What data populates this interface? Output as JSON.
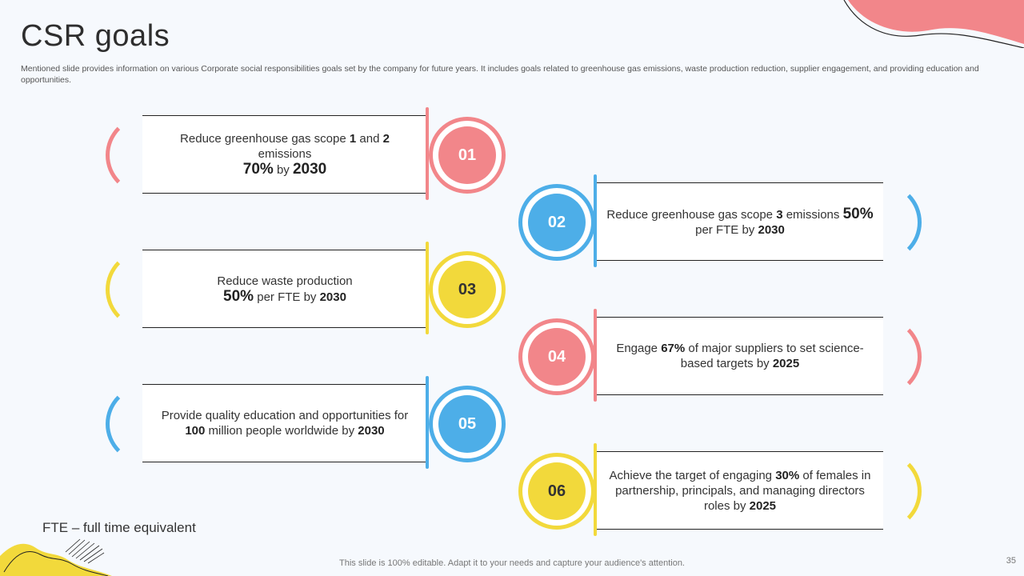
{
  "slide": {
    "title": "CSR goals",
    "subtitle": "Mentioned slide provides information on various Corporate social responsibilities goals set by the company for future years. It includes goals related to greenhouse gas emissions, waste production reduction, supplier engagement, and providing education and opportunities.",
    "footnote": "FTE – full time equivalent",
    "footer": "This slide is 100% editable. Adapt it to your needs and capture your audience's attention.",
    "page_number": "35"
  },
  "colors": {
    "pink": "#f2868a",
    "blue": "#4daee8",
    "yellow": "#f2d93b"
  },
  "goals": [
    {
      "number": "01",
      "color": "pink",
      "line1": [
        "Reduce greenhouse  gas scope ",
        "1",
        " and ",
        "2",
        " emissions"
      ],
      "line2": [
        "70%",
        " by ",
        "2030"
      ]
    },
    {
      "number": "02",
      "color": "blue",
      "line1": [
        "Reduce greenhouse  gas scope ",
        "3",
        " emissions ",
        "50%"
      ],
      "line2": [
        "per FTE by ",
        "2030"
      ]
    },
    {
      "number": "03",
      "color": "yellow",
      "line1": [
        "Reduce waste production"
      ],
      "line2": [
        "50%",
        " per FTE by ",
        "2030"
      ]
    },
    {
      "number": "04",
      "color": "pink",
      "line1": [
        "Engage ",
        "67%",
        " of major suppliers to set science-"
      ],
      "line2": [
        "based targets by ",
        "2025"
      ]
    },
    {
      "number": "05",
      "color": "blue",
      "line1": [
        "Provide quality  education and opportunities for"
      ],
      "line2": [
        "100",
        " million people worldwide by ",
        "2030"
      ]
    },
    {
      "number": "06",
      "color": "yellow",
      "line1": [
        "Achieve the target of engaging ",
        "30%",
        " of females in"
      ],
      "line2": [
        "partnership,  principals, and managing directors"
      ],
      "line3": [
        "roles by ",
        "2025"
      ]
    }
  ]
}
